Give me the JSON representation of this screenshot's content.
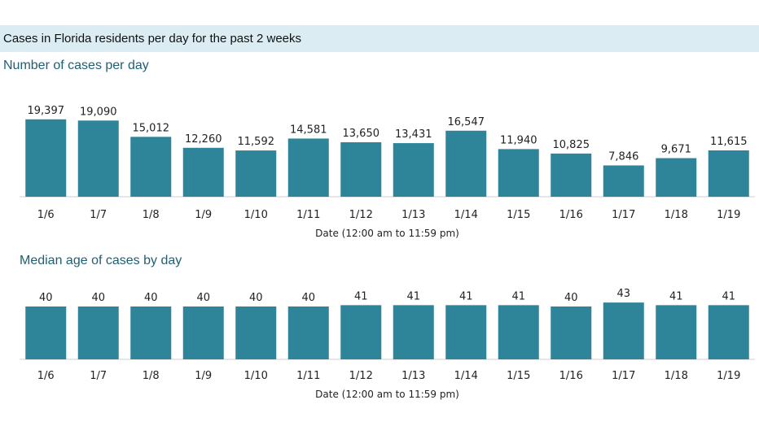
{
  "banner": {
    "title": "Cases in Florida residents per day for the past 2 weeks"
  },
  "chart_data": [
    {
      "type": "bar",
      "title": "Number of cases per day",
      "xlabel": "Date (12:00 am to 11:59 pm)",
      "ylabel": "",
      "categories": [
        "1/6",
        "1/7",
        "1/8",
        "1/9",
        "1/10",
        "1/11",
        "1/12",
        "1/13",
        "1/14",
        "1/15",
        "1/16",
        "1/17",
        "1/18",
        "1/19"
      ],
      "values": [
        19397,
        19090,
        15012,
        12260,
        11592,
        14581,
        13650,
        13431,
        16547,
        11940,
        10825,
        7846,
        9671,
        11615
      ],
      "value_labels": [
        "19,397",
        "19,090",
        "15,012",
        "12,260",
        "11,592",
        "14,581",
        "13,650",
        "13,431",
        "16,547",
        "11,940",
        "10,825",
        "7,846",
        "9,671",
        "11,615"
      ],
      "ylim": [
        0,
        22000
      ],
      "grid": false,
      "color": "#2e8499"
    },
    {
      "type": "bar",
      "title": "Median age of cases by day",
      "xlabel": "Date (12:00 am to 11:59 pm)",
      "ylabel": "",
      "categories": [
        "1/6",
        "1/7",
        "1/8",
        "1/9",
        "1/10",
        "1/11",
        "1/12",
        "1/13",
        "1/14",
        "1/15",
        "1/16",
        "1/17",
        "1/18",
        "1/19"
      ],
      "values": [
        40,
        40,
        40,
        40,
        40,
        40,
        41,
        41,
        41,
        41,
        40,
        43,
        41,
        41
      ],
      "value_labels": [
        "40",
        "40",
        "40",
        "40",
        "40",
        "40",
        "41",
        "41",
        "41",
        "41",
        "40",
        "43",
        "41",
        "41"
      ],
      "ylim": [
        0,
        48
      ],
      "grid": false,
      "color": "#2e8499"
    }
  ]
}
